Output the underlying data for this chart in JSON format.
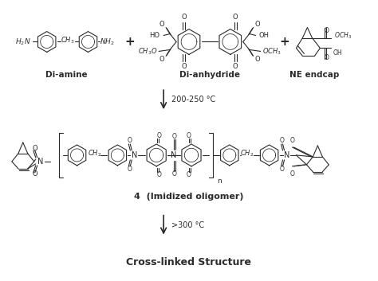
{
  "bg_color": "#ffffff",
  "text_color": "#2a2a2a",
  "figsize": [
    4.74,
    3.53
  ],
  "dpi": 100,
  "label_diamine": "Di-amine",
  "label_dianhydride": "Di-anhydride",
  "label_neendcap": "NE endcap",
  "label_temp1": "200-250 °C",
  "label_oligomer": "4  (Imidized oligomer)",
  "label_temp2": ">300 °C",
  "label_product": "Cross-linked Structure"
}
